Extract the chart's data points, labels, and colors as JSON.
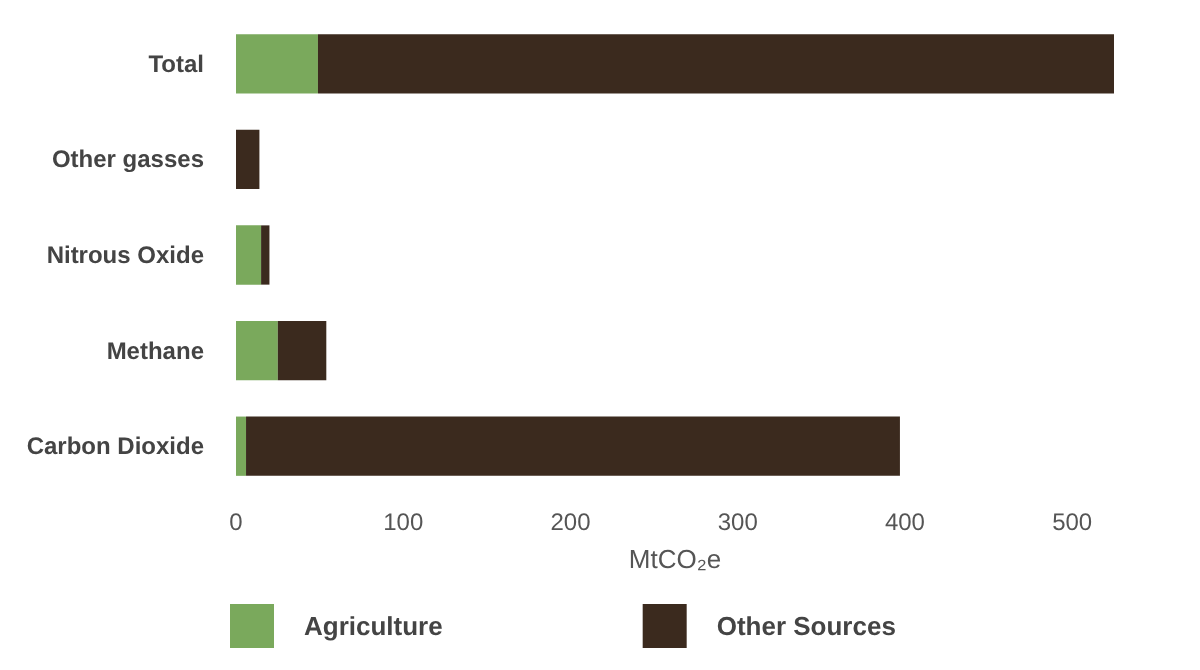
{
  "chart_data": {
    "type": "bar",
    "orientation": "horizontal",
    "stacked": true,
    "xlabel": "MtCO₂e",
    "categories": [
      "Total",
      "Other gasses",
      "Nitrous Oxide",
      "Methane",
      "Carbon Dioxide"
    ],
    "series": [
      {
        "name": "Agriculture",
        "color": "#7aa95c",
        "values": [
          49,
          0,
          15,
          25,
          6
        ]
      },
      {
        "name": "Other Sources",
        "color": "#3b2a1e",
        "values": [
          476,
          14,
          5,
          29,
          391
        ]
      }
    ],
    "xlim": [
      0,
      525
    ],
    "xticks": [
      0,
      100,
      200,
      300,
      400,
      500
    ],
    "grid": false,
    "legend": "bottom"
  }
}
